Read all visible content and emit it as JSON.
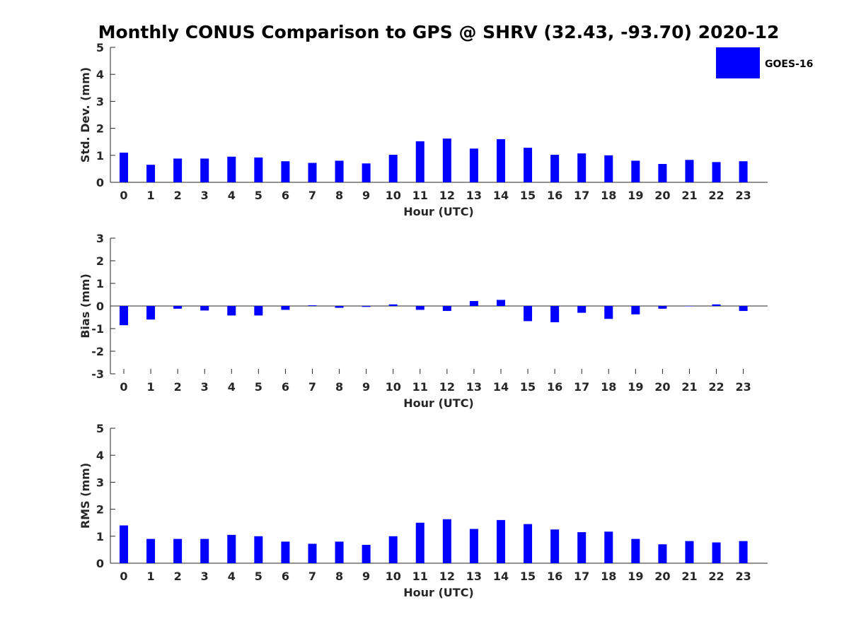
{
  "chart_data": {
    "title": "Monthly CONUS Comparison to GPS @ SHRV (32.43, -93.70) 2020-12",
    "legend": {
      "entries": [
        "GOES-16"
      ],
      "placement": "top-right",
      "color": "#0000ff"
    },
    "bar_color": "#0000ff",
    "panels": [
      {
        "type": "bar",
        "ylabel": "Std. Dev. (mm)",
        "xlabel": "Hour (UTC)",
        "categories": [
          "0",
          "1",
          "2",
          "3",
          "4",
          "5",
          "6",
          "7",
          "8",
          "9",
          "10",
          "11",
          "12",
          "13",
          "14",
          "15",
          "16",
          "17",
          "18",
          "19",
          "20",
          "21",
          "22",
          "23"
        ],
        "ylim": [
          0,
          5
        ],
        "yticks": [
          "0",
          "1",
          "2",
          "3",
          "4",
          "5"
        ],
        "series": [
          {
            "name": "GOES-16",
            "values": [
              1.1,
              0.65,
              0.88,
              0.88,
              0.95,
              0.92,
              0.78,
              0.72,
              0.8,
              0.7,
              1.02,
              1.52,
              1.62,
              1.25,
              1.6,
              1.28,
              1.02,
              1.07,
              1.0,
              0.8,
              0.68,
              0.83,
              0.75,
              0.78
            ]
          }
        ]
      },
      {
        "type": "bar",
        "ylabel": "Bias (mm)",
        "xlabel": "Hour (UTC)",
        "categories": [
          "0",
          "1",
          "2",
          "3",
          "4",
          "5",
          "6",
          "7",
          "8",
          "9",
          "10",
          "11",
          "12",
          "13",
          "14",
          "15",
          "16",
          "17",
          "18",
          "19",
          "20",
          "21",
          "22",
          "23"
        ],
        "ylim": [
          -3,
          3
        ],
        "yticks": [
          "-3",
          "-2",
          "-1",
          "0",
          "1",
          "2",
          "3"
        ],
        "series": [
          {
            "name": "GOES-16",
            "values": [
              -0.85,
              -0.6,
              -0.12,
              -0.2,
              -0.42,
              -0.42,
              -0.17,
              0.03,
              -0.08,
              -0.04,
              0.07,
              -0.17,
              -0.22,
              0.22,
              0.27,
              -0.67,
              -0.72,
              -0.3,
              -0.57,
              -0.37,
              -0.12,
              0.0,
              0.07,
              -0.22
            ]
          }
        ]
      },
      {
        "type": "bar",
        "ylabel": "RMS (mm)",
        "xlabel": "Hour (UTC)",
        "categories": [
          "0",
          "1",
          "2",
          "3",
          "4",
          "5",
          "6",
          "7",
          "8",
          "9",
          "10",
          "11",
          "12",
          "13",
          "14",
          "15",
          "16",
          "17",
          "18",
          "19",
          "20",
          "21",
          "22",
          "23"
        ],
        "ylim": [
          0,
          5
        ],
        "yticks": [
          "0",
          "1",
          "2",
          "3",
          "4",
          "5"
        ],
        "series": [
          {
            "name": "GOES-16",
            "values": [
              1.4,
              0.9,
              0.9,
              0.9,
              1.05,
              1.0,
              0.8,
              0.72,
              0.8,
              0.68,
              1.0,
              1.5,
              1.63,
              1.27,
              1.6,
              1.45,
              1.25,
              1.15,
              1.17,
              0.9,
              0.7,
              0.82,
              0.77,
              0.82
            ]
          }
        ]
      }
    ]
  }
}
